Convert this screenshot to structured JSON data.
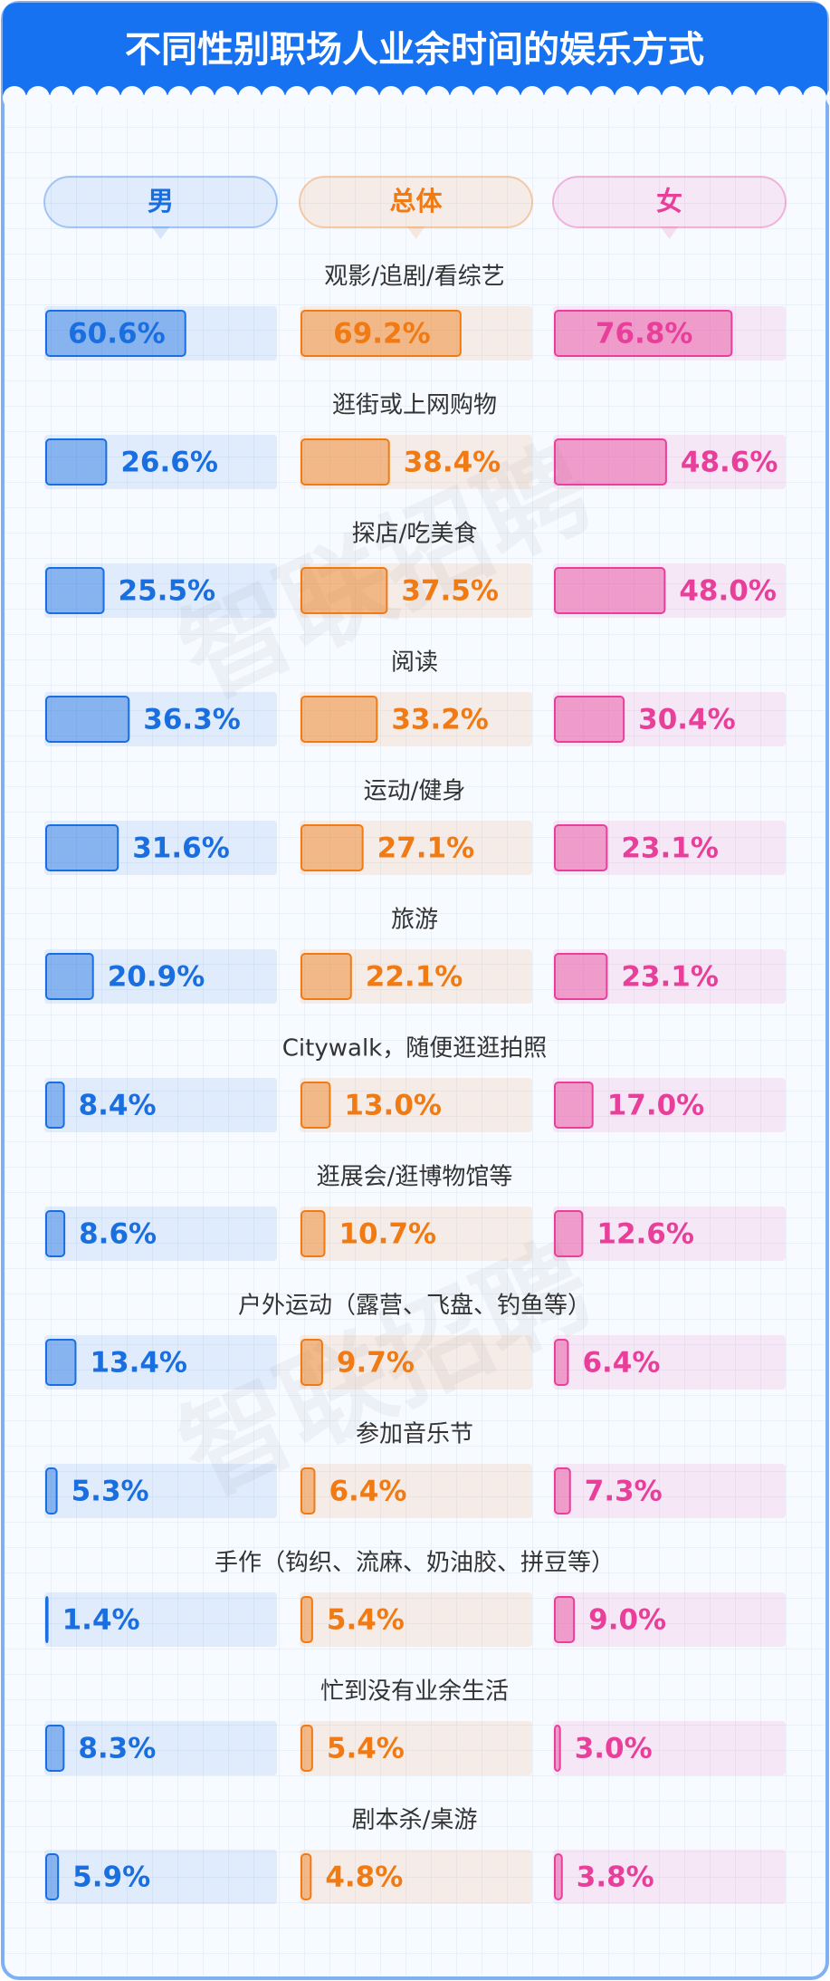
{
  "chart_data": {
    "type": "bar",
    "title": "不同性别职场人业余时间的娱乐方式",
    "watermark": "智联招聘",
    "categories": [
      "观影/追剧/看综艺",
      "逛街或上网购物",
      "探店/吃美食",
      "阅读",
      "运动/健身",
      "旅游",
      "Citywalk，随便逛逛拍照",
      "逛展会/逛博物馆等",
      "户外运动（露营、飞盘、钓鱼等）",
      "参加音乐节",
      "手作（钩织、流麻、奶油胶、拼豆等）",
      "忙到没有业余生活",
      "剧本杀/桌游"
    ],
    "xlim": [
      0,
      100
    ],
    "series": [
      {
        "name": "男",
        "color": "#1a6fe0",
        "values": [
          60.6,
          26.6,
          25.5,
          36.3,
          31.6,
          20.9,
          8.4,
          8.6,
          13.4,
          5.3,
          1.4,
          8.3,
          5.9
        ],
        "value_labels": [
          "60.6%",
          "26.6%",
          "25.5%",
          "36.3%",
          "31.6%",
          "20.9%",
          "8.4%",
          "8.6%",
          "13.4%",
          "5.3%",
          "1.4%",
          "8.3%",
          "5.9%"
        ]
      },
      {
        "name": "总体",
        "color": "#f07a14",
        "values": [
          69.2,
          38.4,
          37.5,
          33.2,
          27.1,
          22.1,
          13.0,
          10.7,
          9.7,
          6.4,
          5.4,
          5.4,
          4.8
        ],
        "value_labels": [
          "69.2%",
          "38.4%",
          "37.5%",
          "33.2%",
          "27.1%",
          "22.1%",
          "13.0%",
          "10.7%",
          "9.7%",
          "6.4%",
          "5.4%",
          "5.4%",
          "4.8%"
        ]
      },
      {
        "name": "女",
        "color": "#e8409a",
        "values": [
          76.8,
          48.6,
          48.0,
          30.4,
          23.1,
          23.1,
          17.0,
          12.6,
          6.4,
          7.3,
          9.0,
          3.0,
          3.8
        ],
        "value_labels": [
          "76.8%",
          "48.6%",
          "48.0%",
          "30.4%",
          "23.1%",
          "23.1%",
          "17.0%",
          "12.6%",
          "6.4%",
          "7.3%",
          "9.0%",
          "3.0%",
          "3.8%"
        ]
      }
    ]
  }
}
